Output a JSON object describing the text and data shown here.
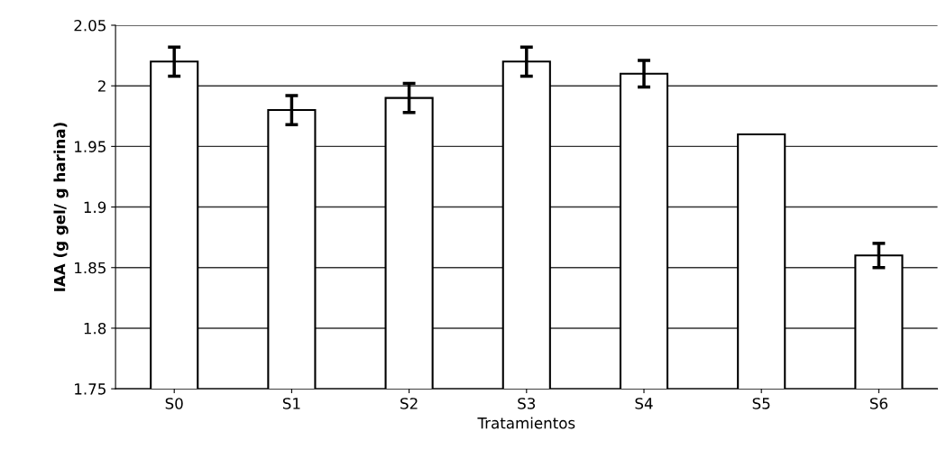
{
  "chart_data": {
    "type": "bar",
    "xlabel": "Tratamientos",
    "ylabel": "IAA (g gel/ g harina)",
    "categories": [
      "S0",
      "S1",
      "S2",
      "S3",
      "S4",
      "S5",
      "S6"
    ],
    "values": [
      2.02,
      1.98,
      1.99,
      2.02,
      2.01,
      1.96,
      1.86
    ],
    "errors": [
      0.012,
      0.012,
      0.012,
      0.012,
      0.011,
      null,
      0.01
    ],
    "color": "#ffffff",
    "ylim": [
      1.75,
      2.05
    ],
    "yticks": [
      1.75,
      1.8,
      1.85,
      1.9,
      1.95,
      2,
      2.05
    ],
    "grid": "y",
    "legend": false
  }
}
